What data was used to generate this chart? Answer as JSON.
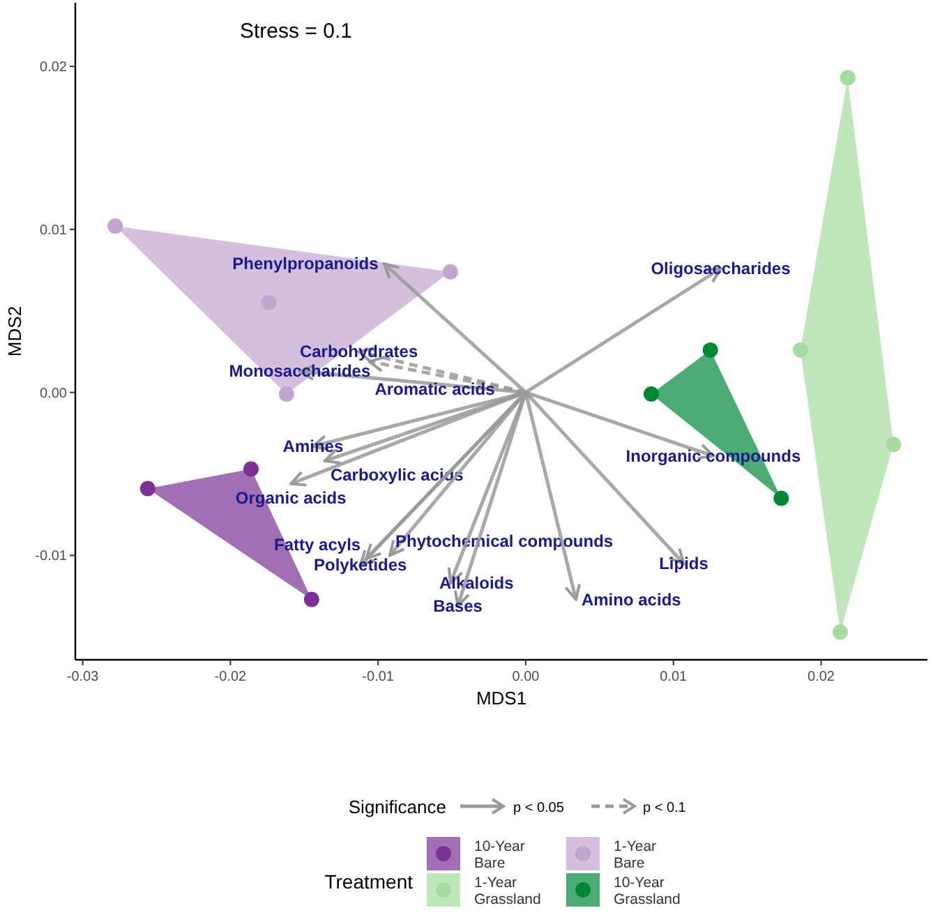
{
  "chart_data": {
    "type": "scatter",
    "xlabel": "MDS1",
    "ylabel": "MDS2",
    "legend_title": "Treatment",
    "legend": "bottom",
    "annotations": [
      "Stress = 0.1",
      "Significance",
      "p < 0.05",
      "p < 0.1"
    ],
    "xlim": [
      -0.0305,
      0.0272
    ],
    "ylim": [
      -0.0164,
      0.0239
    ],
    "xticks": [
      -0.03,
      -0.02,
      -0.01,
      {
        "value": 0,
        "label": "0.00"
      },
      0.01,
      0.02
    ],
    "yticks": [
      -0.01,
      {
        "value": 0,
        "label": "0.00"
      },
      0.01,
      0.02
    ],
    "series": [
      {
        "name": "10-Year Bare",
        "type": "scatter",
        "marker": "circle",
        "color": "#7b3294",
        "x": [
          -0.0256,
          -0.0186,
          -0.0145
        ],
        "values": [
          -0.0059,
          -0.0047,
          -0.0127
        ]
      },
      {
        "name": "1-Year Grassland",
        "type": "scatter",
        "marker": "circle",
        "color": "#a6dba0",
        "x": [
          0.0218,
          0.0186,
          0.0249,
          0.0213
        ],
        "values": [
          0.0193,
          0.0026,
          -0.0032,
          -0.0147
        ]
      },
      {
        "name": "1-Year Bare",
        "type": "scatter",
        "marker": "circle",
        "color": "#c2a5cf",
        "x": [
          -0.0278,
          -0.0051,
          -0.0174,
          -0.0162
        ],
        "values": [
          0.0102,
          0.0074,
          0.0055,
          -0.0001
        ]
      },
      {
        "name": "10-Year Grassland",
        "type": "scatter",
        "marker": "circle",
        "color": "#008837",
        "x": [
          0.0085,
          0.0125,
          0.0173
        ],
        "values": [
          -0.0001,
          0.0026,
          -0.0065
        ]
      },
      {
        "name": "Phenylpropanoids",
        "type": "line",
        "line_style": "solid",
        "color": "#999999",
        "x": [
          0,
          -0.0096
        ],
        "values": [
          0,
          0.0079
        ]
      },
      {
        "name": "Carbohydrates",
        "type": "line",
        "line_style": "dashed",
        "color": "#999999",
        "x": [
          0,
          -0.0113
        ],
        "values": [
          0,
          0.0025
        ]
      },
      {
        "name": "Monosaccharides",
        "type": "line",
        "line_style": "solid",
        "color": "#999999",
        "x": [
          0,
          -0.0153
        ],
        "values": [
          0,
          0.0013
        ]
      },
      {
        "name": "Aromatic acids",
        "type": "line",
        "line_style": "dashed",
        "color": "#999999",
        "x": [
          0,
          -0.0106
        ],
        "values": [
          0,
          0.0019
        ]
      },
      {
        "name": "Amines",
        "type": "line",
        "line_style": "solid",
        "color": "#999999",
        "x": [
          0,
          -0.0144
        ],
        "values": [
          0,
          -0.0033
        ]
      },
      {
        "name": "Carboxylic acids",
        "type": "line",
        "line_style": "solid",
        "color": "#999999",
        "x": [
          0,
          -0.0136
        ],
        "values": [
          0,
          -0.0042
        ]
      },
      {
        "name": "Organic acids",
        "type": "line",
        "line_style": "solid",
        "color": "#999999",
        "x": [
          0,
          -0.0159
        ],
        "values": [
          0,
          -0.0056
        ]
      },
      {
        "name": "Polyketides",
        "type": "line",
        "line_style": "solid",
        "color": "#999999",
        "x": [
          0,
          -0.0112
        ],
        "values": [
          0,
          -0.0106
        ]
      },
      {
        "name": "Fatty acyls",
        "type": "line",
        "line_style": "solid",
        "color": "#999999",
        "x": [
          0,
          -0.0108
        ],
        "values": [
          0,
          -0.0102
        ]
      },
      {
        "name": "Phytochemical compounds",
        "type": "line",
        "line_style": "solid",
        "color": "#999999",
        "x": [
          0,
          -0.0092
        ],
        "values": [
          0,
          -0.01
        ]
      },
      {
        "name": "Alkaloids",
        "type": "line",
        "line_style": "solid",
        "color": "#999999",
        "x": [
          0,
          -0.0051
        ],
        "values": [
          0,
          -0.0117
        ]
      },
      {
        "name": "Bases",
        "type": "line",
        "line_style": "solid",
        "color": "#999999",
        "x": [
          0,
          -0.0046
        ],
        "values": [
          0,
          -0.0131
        ]
      },
      {
        "name": "Amino acids",
        "type": "line",
        "line_style": "solid",
        "color": "#999999",
        "x": [
          0,
          0.0034
        ],
        "values": [
          0,
          -0.0127
        ]
      },
      {
        "name": "Lipids",
        "type": "line",
        "line_style": "solid",
        "color": "#999999",
        "x": [
          0,
          0.0107
        ],
        "values": [
          0,
          -0.0105
        ]
      },
      {
        "name": "Inorganic compounds",
        "type": "line",
        "line_style": "solid",
        "color": "#999999",
        "x": [
          0,
          0.0127
        ],
        "values": [
          0,
          -0.0039
        ]
      },
      {
        "name": "Oligosaccharides",
        "type": "line",
        "line_style": "solid",
        "color": "#999999",
        "x": [
          0,
          0.0132
        ],
        "values": [
          0,
          0.0076
        ]
      }
    ]
  }
}
